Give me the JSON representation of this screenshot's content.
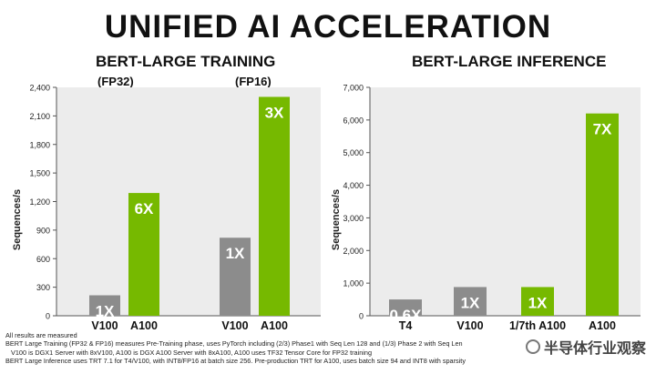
{
  "title": "UNIFIED AI ACCELERATION",
  "chart_data": [
    {
      "type": "bar",
      "title": "BERT-LARGE TRAINING",
      "ylabel": "Sequences/s",
      "ylim": [
        0,
        2400
      ],
      "yticks": [
        0,
        300,
        600,
        900,
        1200,
        1500,
        1800,
        2100,
        2400
      ],
      "ytick_labels": [
        "0",
        "300",
        "600",
        "900",
        "1,200",
        "1,500",
        "1,800",
        "2,100",
        "2,400"
      ],
      "groups": [
        {
          "label": "(FP32)",
          "categories": [
            "V100",
            "A100"
          ],
          "values": [
            215,
            1290
          ],
          "bar_labels": [
            "1X",
            "6X"
          ]
        },
        {
          "label": "(FP16)",
          "categories": [
            "V100",
            "A100"
          ],
          "values": [
            820,
            2300
          ],
          "bar_labels": [
            "1X",
            "3X"
          ]
        }
      ],
      "colors": {
        "baseline": "#8c8c8c",
        "accelerated": "#76b900",
        "panel": "#ececec"
      }
    },
    {
      "type": "bar",
      "title": "BERT-LARGE INFERENCE",
      "ylabel": "Sequences/s",
      "ylim": [
        0,
        7000
      ],
      "yticks": [
        0,
        1000,
        2000,
        3000,
        4000,
        5000,
        6000,
        7000
      ],
      "ytick_labels": [
        "0",
        "1,000",
        "2,000",
        "3,000",
        "4,000",
        "5,000",
        "6,000",
        "7,000"
      ],
      "categories": [
        "T4",
        "V100",
        "1/7th A100",
        "A100"
      ],
      "values": [
        500,
        880,
        880,
        6200
      ],
      "bar_labels": [
        "0.6X",
        "1X",
        "1X",
        "7X"
      ],
      "bar_kinds": [
        "baseline",
        "baseline",
        "accelerated",
        "accelerated"
      ],
      "colors": {
        "baseline": "#8c8c8c",
        "accelerated": "#76b900",
        "panel": "#ececec"
      }
    }
  ],
  "footnotes": [
    "All results are measured",
    "BERT Large Training (FP32 & FP16) measures Pre-Training phase, uses PyTorch including (2/3) Phase1 with Seq Len 128 and (1/3) Phase 2 with Seq Len",
    "V100 is DGX1 Server with 8xV100, A100 is DGX A100 Server with 8xA100, A100 uses TF32 Tensor Core for FP32 training",
    "BERT Large Inference uses TRT 7.1 for T4/V100, with INT8/FP16 at batch size 256. Pre-production TRT for A100, uses batch size 94 and INT8 with sparsity"
  ],
  "watermark": "半导体行业观察"
}
